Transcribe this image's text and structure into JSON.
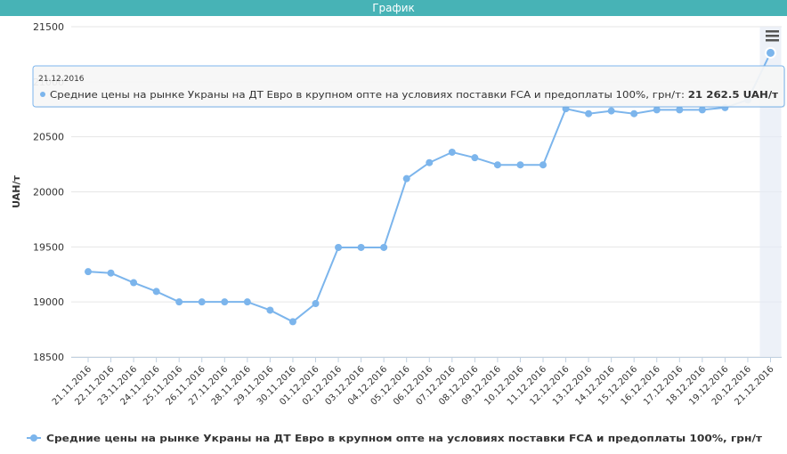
{
  "window": {
    "title": "График"
  },
  "chart_data": {
    "type": "line",
    "ylabel": "UAH/т",
    "xlabel": "",
    "ylim": [
      18500,
      21500
    ],
    "y_ticks": [
      18500,
      19000,
      19500,
      20000,
      20500,
      21000,
      21500
    ],
    "grid": true,
    "legend_position": "bottom-left",
    "categories": [
      "21.11.2016",
      "22.11.2016",
      "23.11.2016",
      "24.11.2016",
      "25.11.2016",
      "26.11.2016",
      "27.11.2016",
      "28.11.2016",
      "29.11.2016",
      "30.11.2016",
      "01.12.2016",
      "02.12.2016",
      "03.12.2016",
      "04.12.2016",
      "05.12.2016",
      "06.12.2016",
      "07.12.2016",
      "08.12.2016",
      "09.12.2016",
      "10.12.2016",
      "11.12.2016",
      "12.12.2016",
      "13.12.2016",
      "14.12.2016",
      "15.12.2016",
      "16.12.2016",
      "17.12.2016",
      "18.12.2016",
      "19.12.2016",
      "20.12.2016",
      "21.12.2016"
    ],
    "series": [
      {
        "name": "Средние цены на рынке Украны на ДТ Евро в крупном опте на условиях поставки FCA и предоплаты 100%, грн/т",
        "color": "#7cb5ec",
        "values": [
          19275,
          19262.5,
          19175,
          19095,
          19000,
          19000,
          19000,
          19000,
          18925,
          18820,
          18985,
          19495,
          19495,
          19495,
          20120,
          20265,
          20360,
          20310,
          20245,
          20245,
          20245,
          20755,
          20710,
          20735,
          20710,
          20745,
          20745,
          20745,
          20765,
          20835,
          21262.5
        ]
      }
    ],
    "tooltip": {
      "date": "21.12.2016",
      "value_text": "21 262.5 UAH/т",
      "label_suffix": ": "
    }
  }
}
